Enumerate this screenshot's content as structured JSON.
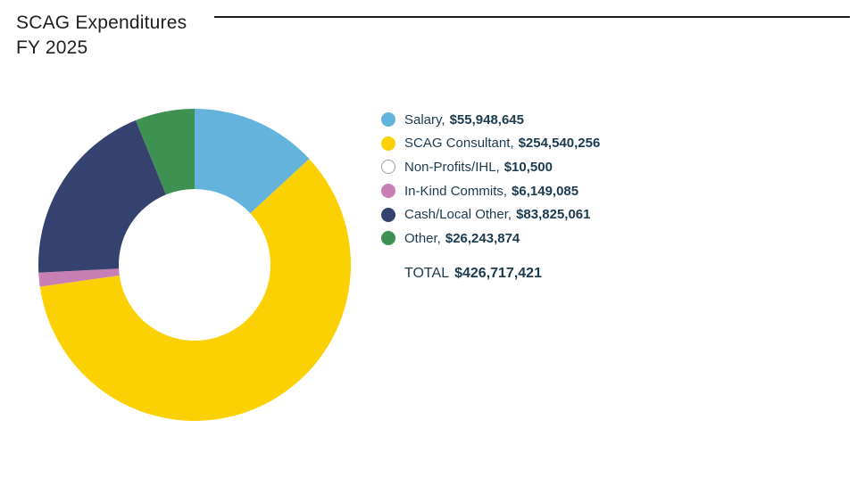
{
  "header": {
    "title_line1": "SCAG Expenditures",
    "title_line2": "FY 2025"
  },
  "chart_data": {
    "type": "pie",
    "subtype": "donut",
    "title": "SCAG Expenditures FY 2025",
    "start_angle_deg": 0,
    "direction": "clockwise",
    "inner_radius_ratio": 0.486,
    "legend_position": "right",
    "slices": [
      {
        "label": "Salary",
        "value": 55948645,
        "value_text": "$55,948,645",
        "color": "#63B3DC"
      },
      {
        "label": "SCAG Consultant",
        "value": 254540256,
        "value_text": "$254,540,256",
        "color": "#FBD104"
      },
      {
        "label": "Non-Profits/IHL",
        "value": 10500,
        "value_text": "$10,500",
        "color": "#FFFFFF",
        "legend_border": "#9aa0a6"
      },
      {
        "label": "In-Kind Commits",
        "value": 6149085,
        "value_text": "$6,149,085",
        "color": "#C77FB4"
      },
      {
        "label": "Cash/Local Other",
        "value": 83825061,
        "value_text": "$83,825,061",
        "color": "#35426F"
      },
      {
        "label": "Other",
        "value": 26243874,
        "value_text": "$26,243,874",
        "color": "#3E9150"
      }
    ],
    "total": {
      "label": "TOTAL",
      "value": 426717421,
      "value_text": "$426,717,421"
    },
    "label_value_separator": ", "
  },
  "colors": {
    "text": "#1c3a4e",
    "title": "#1e1e1e",
    "rule": "#1a1a1a"
  }
}
